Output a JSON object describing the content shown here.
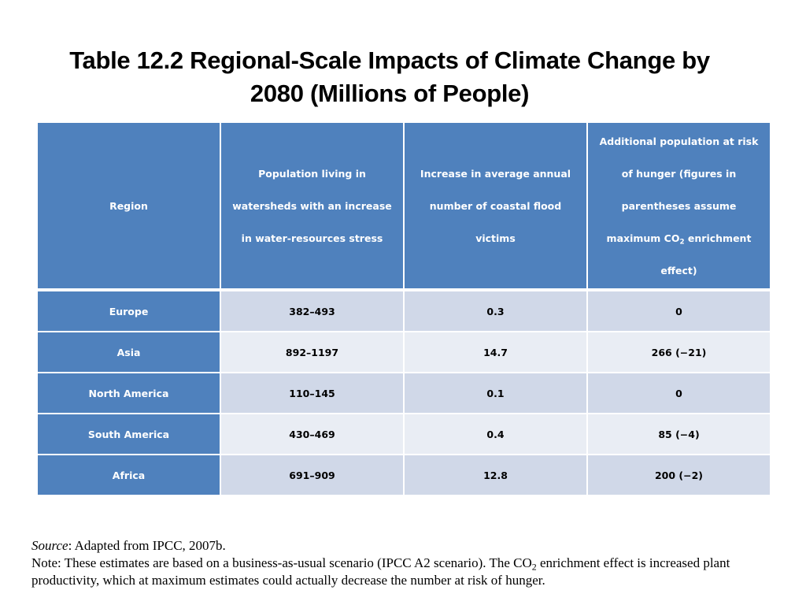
{
  "title": {
    "line1": "Table 12.2 Regional-Scale Impacts of Climate Change by",
    "line2": "2080 (Millions of People)"
  },
  "table": {
    "headers": {
      "region": "Region",
      "water_stress": "Population living in watersheds with an increase in water-resources stress",
      "coastal_flood": "Increase in average annual number of coastal flood victims",
      "hunger_pre": "Additional population at risk of hunger (figures in parentheses assume maximum CO",
      "hunger_sub": "2",
      "hunger_post": " enrichment effect)"
    },
    "rows": [
      {
        "region": "Europe",
        "water_stress": "382–493",
        "coastal_flood": "0.3",
        "hunger": "0"
      },
      {
        "region": "Asia",
        "water_stress": "892–1197",
        "coastal_flood": "14.7",
        "hunger": "266 (−21)"
      },
      {
        "region": "North America",
        "water_stress": "110–145",
        "coastal_flood": "0.1",
        "hunger": "0"
      },
      {
        "region": "South America",
        "water_stress": "430–469",
        "coastal_flood": "0.4",
        "hunger": "85 (−4)"
      },
      {
        "region": "Africa",
        "water_stress": "691–909",
        "coastal_flood": "12.8",
        "hunger": "200 (−2)"
      }
    ]
  },
  "notes": {
    "source_label": "Source",
    "source_text": ": Adapted from IPCC, 2007b.",
    "note_pre": "Note: These estimates are based on a business-as-usual scenario (IPCC A2 scenario). The CO",
    "note_sub": "2",
    "note_post": " enrichment effect is increased plant productivity, which at maximum estimates could actually decrease the number at risk of hunger."
  },
  "colors": {
    "header_blue": "#4f81bd",
    "row_band_dark": "#d0d8e8",
    "row_band_light": "#e9edf4"
  }
}
